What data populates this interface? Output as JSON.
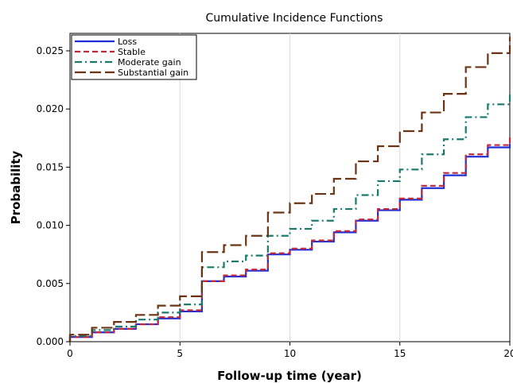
{
  "chart_data": {
    "type": "line",
    "step": true,
    "title": "Cumulative Incidence Functions",
    "xlabel": "Follow-up time (year)",
    "ylabel": "Probability",
    "xlim": [
      0,
      20
    ],
    "ylim": [
      0,
      0.0265
    ],
    "x_ticks": [
      0,
      5,
      10,
      15,
      20
    ],
    "x_tick_labels": [
      "0",
      "5",
      "10",
      "15",
      "20"
    ],
    "y_ticks": [
      0,
      0.005,
      0.01,
      0.015,
      0.02,
      0.025
    ],
    "y_tick_labels": [
      "0.000",
      "0.005",
      "0.010",
      "0.015",
      "0.020",
      "0.025"
    ],
    "grid": "vertical",
    "legend_position": "top-left",
    "x": [
      0,
      1,
      2,
      3,
      4,
      5,
      6,
      7,
      8,
      9,
      10,
      11,
      12,
      13,
      14,
      15,
      16,
      17,
      18,
      19,
      20
    ],
    "series": [
      {
        "name": "Loss",
        "color": "#1f2fd6",
        "dash": "solid",
        "values": [
          0.0004,
          0.0008,
          0.0011,
          0.0015,
          0.002,
          0.0026,
          0.0052,
          0.0056,
          0.0061,
          0.0075,
          0.0079,
          0.0086,
          0.0094,
          0.0104,
          0.0113,
          0.0122,
          0.0132,
          0.0143,
          0.0159,
          0.0167,
          0.017
        ]
      },
      {
        "name": "Stable",
        "color": "#c0283c",
        "dash": "dashed",
        "values": [
          0.0004,
          0.0008,
          0.0011,
          0.0015,
          0.0021,
          0.0027,
          0.0052,
          0.0057,
          0.0062,
          0.0076,
          0.008,
          0.0087,
          0.0095,
          0.0105,
          0.0114,
          0.0123,
          0.0134,
          0.0145,
          0.0161,
          0.0169,
          0.0178
        ]
      },
      {
        "name": "Moderate gain",
        "color": "#1a7a6e",
        "dash": "dashdot",
        "values": [
          0.0005,
          0.001,
          0.0013,
          0.0019,
          0.0025,
          0.0032,
          0.0064,
          0.0069,
          0.0074,
          0.0091,
          0.0097,
          0.0104,
          0.0114,
          0.0126,
          0.0138,
          0.0148,
          0.0161,
          0.0174,
          0.0193,
          0.0204,
          0.0214
        ]
      },
      {
        "name": "Substantial gain",
        "color": "#6b3414",
        "dash": "longdash",
        "values": [
          0.0006,
          0.0012,
          0.0017,
          0.0023,
          0.0031,
          0.0039,
          0.0077,
          0.0083,
          0.0091,
          0.0111,
          0.0119,
          0.0127,
          0.014,
          0.0155,
          0.0168,
          0.0181,
          0.0197,
          0.0213,
          0.0236,
          0.0248,
          0.0262
        ]
      }
    ]
  }
}
